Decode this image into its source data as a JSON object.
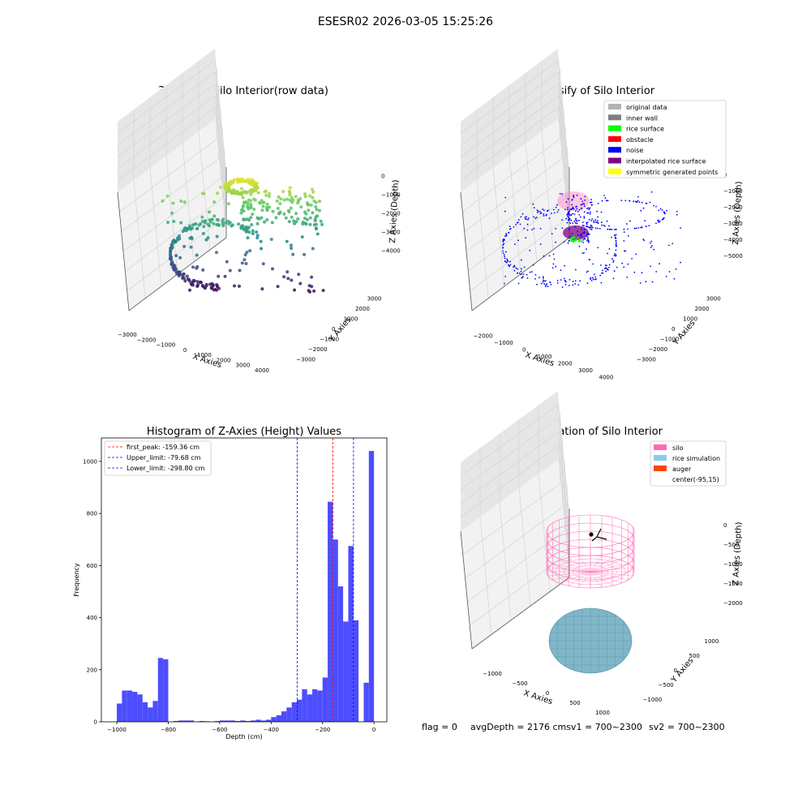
{
  "figure": {
    "suptitle": "ESESR02 2026-03-05 15:25:26",
    "footer": {
      "flag": "flag = 0",
      "avg": "avgDepth = 2176 cmsv1 = 700~2300",
      "sv2": "sv2 = 700~2300"
    }
  },
  "chart_data": [
    {
      "type": "scatter",
      "subtype": "3d",
      "title": "3D Plot of Silo Interior(row data)",
      "xlabel": "X Axies",
      "ylabel": "Y Axies",
      "zlabel": "Z Axies (Depth)",
      "x_ticks": [
        "−3000",
        "−2000",
        "−1000",
        "0",
        "1000",
        "2000",
        "3000",
        "4000"
      ],
      "y_ticks": [
        "−3000",
        "−2000",
        "−1000",
        "0",
        "1000",
        "2000",
        "3000"
      ],
      "z_ticks": [
        "−4000",
        "−3000",
        "−2000",
        "−1000",
        "0"
      ],
      "colormap": "viridis",
      "grid": true
    },
    {
      "type": "scatter",
      "subtype": "3d",
      "title": "3D classify of Silo Interior",
      "xlabel": "X Axies",
      "ylabel": "Y Axies",
      "zlabel": "Z Axies (Depth)",
      "x_ticks": [
        "−2000",
        "−1000",
        "0",
        "1000",
        "2000",
        "3000",
        "4000"
      ],
      "y_ticks": [
        "−3000",
        "−2000",
        "−1000",
        "0",
        "1000",
        "2000",
        "3000"
      ],
      "z_ticks": [
        "−5000",
        "−4000",
        "−3000",
        "−2000",
        "−1000",
        "0"
      ],
      "legend": [
        {
          "label": "original data",
          "color": "#b3b3b3"
        },
        {
          "label": "inner wall",
          "color": "#808080"
        },
        {
          "label": "rice surface",
          "color": "#00ff00"
        },
        {
          "label": "obstacle",
          "color": "#ff0000"
        },
        {
          "label": "noise",
          "color": "#0000ff"
        },
        {
          "label": "interpolated rice surface",
          "color": "#800080"
        },
        {
          "label": "symmetric generated points",
          "color": "#ffff00"
        }
      ],
      "legend_position": "top-right",
      "grid": true
    },
    {
      "type": "bar",
      "subtype": "histogram",
      "title": "Histogram of Z-Axies (Height) Values",
      "xlabel": "Depth (cm)",
      "ylabel": "Frequency",
      "xlim": [
        -1060,
        50
      ],
      "ylim": [
        0,
        1090
      ],
      "x_ticks": [
        -1000,
        -800,
        -600,
        -400,
        -200,
        0
      ],
      "y_ticks": [
        0,
        200,
        400,
        600,
        800,
        1000
      ],
      "bar_color": "#4d4dff",
      "bin_width": 20,
      "bin_starts": [
        -1000,
        -980,
        -960,
        -940,
        -920,
        -900,
        -880,
        -860,
        -840,
        -820,
        -800,
        -780,
        -760,
        -740,
        -720,
        -700,
        -680,
        -660,
        -640,
        -620,
        -600,
        -580,
        -560,
        -540,
        -520,
        -500,
        -480,
        -460,
        -440,
        -420,
        -400,
        -380,
        -360,
        -340,
        -320,
        -300,
        -280,
        -260,
        -240,
        -220,
        -200,
        -180,
        -160,
        -140,
        -120,
        -100,
        -80,
        -60,
        -40,
        -20
      ],
      "values": [
        70,
        120,
        120,
        115,
        105,
        75,
        55,
        80,
        245,
        240,
        0,
        3,
        5,
        5,
        5,
        0,
        3,
        2,
        0,
        3,
        5,
        5,
        5,
        3,
        5,
        3,
        5,
        8,
        5,
        8,
        18,
        25,
        40,
        55,
        75,
        85,
        125,
        105,
        125,
        120,
        170,
        845,
        700,
        520,
        385,
        675,
        390,
        0,
        150,
        1040
      ],
      "vlines": [
        {
          "label": "first_peak: -159.36 cm",
          "x": -159.36,
          "color": "#ff0000"
        },
        {
          "label": "Upper_limit: -79.68 cm",
          "x": -79.68,
          "color": "#0000ff"
        },
        {
          "label": "Lower_limit: -298.80 cm",
          "x": -298.8,
          "color": "#0000ff"
        }
      ],
      "legend_position": "top-left",
      "grid": false
    },
    {
      "type": "scatter",
      "subtype": "3d-wireframe",
      "title": "3D simulation of Silo Interior",
      "xlabel": "X Axies",
      "ylabel": "Y Axies",
      "zlabel": "Z Axies (Depth)",
      "x_ticks": [
        "−1000",
        "−500",
        "0",
        "500",
        "1000"
      ],
      "y_ticks": [
        "−1000",
        "−500",
        "0",
        "500",
        "1000"
      ],
      "z_ticks": [
        "−2000",
        "−1500",
        "−1000",
        "−500",
        "0"
      ],
      "legend": [
        {
          "label": "silo",
          "color": "#ff69b4"
        },
        {
          "label": "rice simulation",
          "color": "#87ceeb"
        },
        {
          "label": "auger",
          "color": "#ff4500"
        },
        {
          "label": "center(-95,15)",
          "color": ""
        }
      ],
      "legend_position": "top-right",
      "grid": true
    }
  ]
}
